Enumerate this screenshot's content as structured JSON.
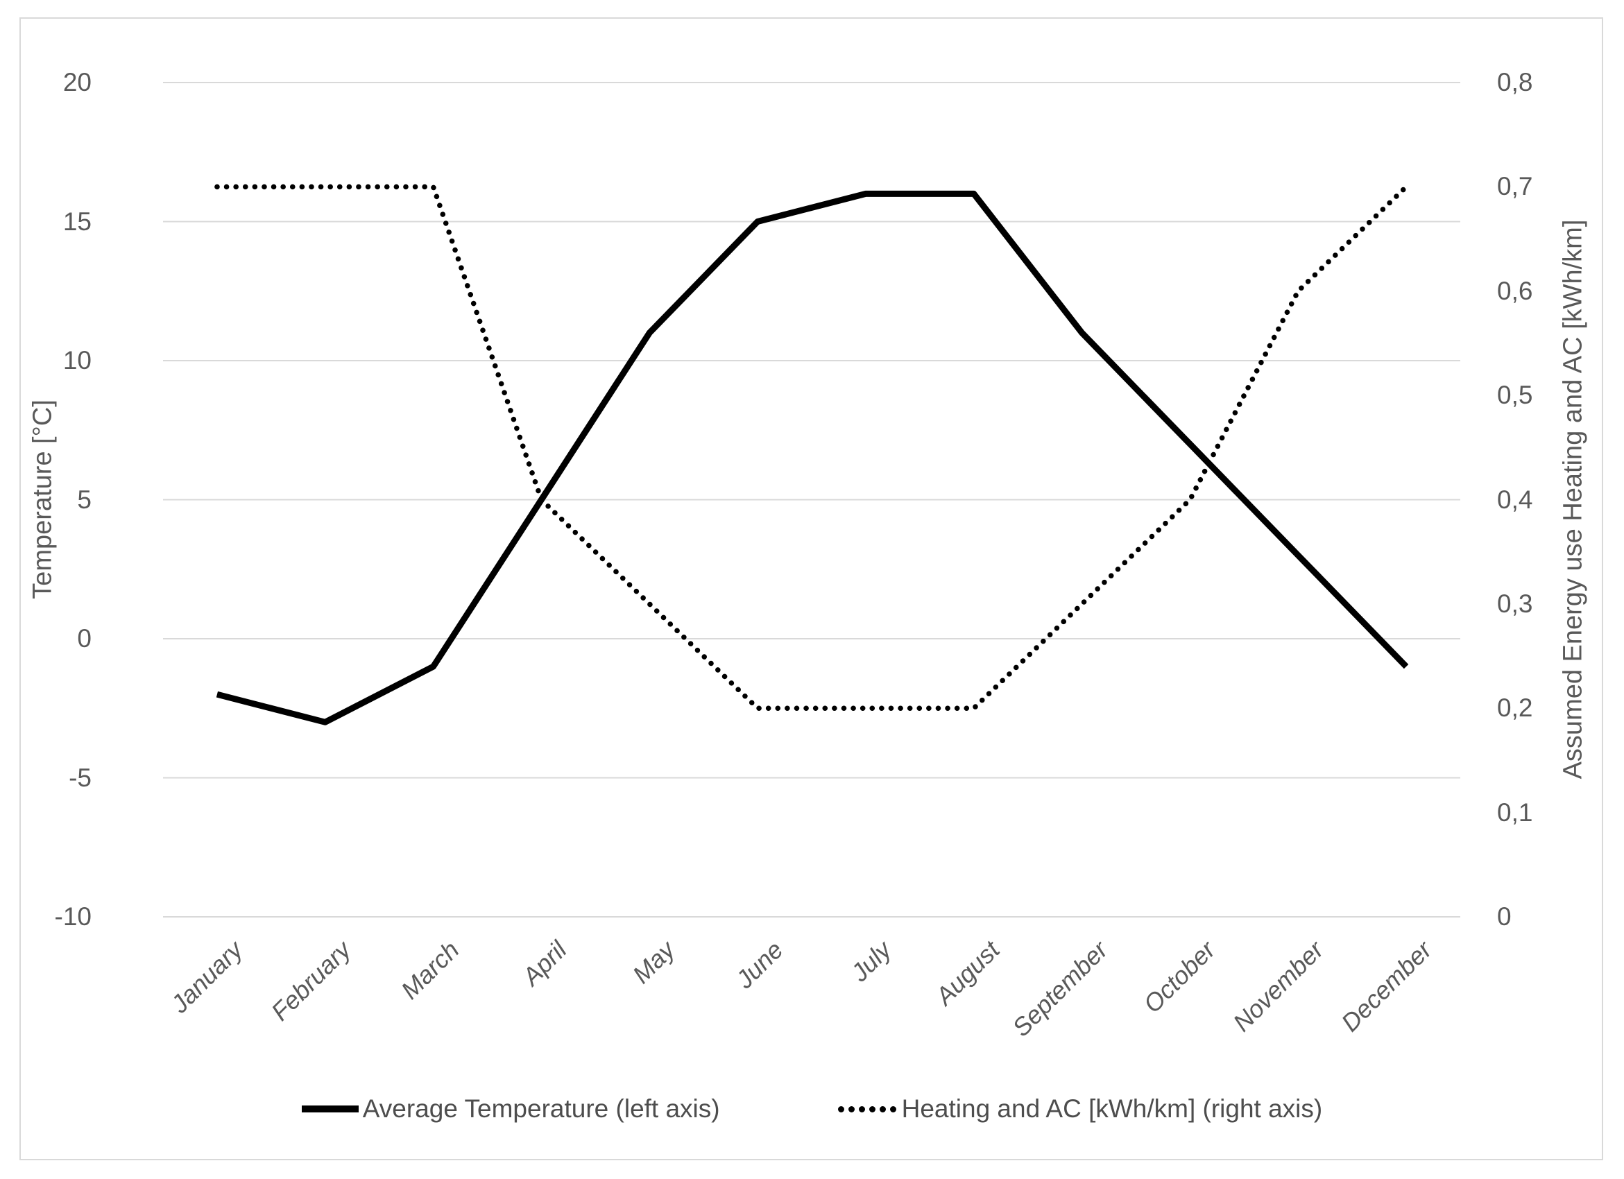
{
  "chart_data": {
    "type": "line",
    "categories": [
      "January",
      "February",
      "March",
      "April",
      "May",
      "June",
      "July",
      "August",
      "September",
      "October",
      "November",
      "December"
    ],
    "series": [
      {
        "name": "Average Temperature (left axis)",
        "axis": "left",
        "style": "solid",
        "color": "#000000",
        "values": [
          -2,
          -3,
          -1,
          5,
          11,
          15,
          16,
          16,
          11,
          7,
          3,
          -1
        ]
      },
      {
        "name": "Heating and AC [kWh/km] (right axis)",
        "axis": "right",
        "style": "dotted",
        "color": "#000000",
        "values": [
          0.7,
          0.7,
          0.7,
          0.4,
          0.3,
          0.2,
          0.2,
          0.2,
          0.3,
          0.4,
          0.6,
          0.7
        ]
      }
    ],
    "left_axis": {
      "title": "Temperature [°C]",
      "min": -10,
      "max": 20,
      "ticks": [
        {
          "label": "20",
          "value": 20
        },
        {
          "label": "15",
          "value": 15
        },
        {
          "label": "10",
          "value": 10
        },
        {
          "label": "5",
          "value": 5
        },
        {
          "label": "0",
          "value": 0
        },
        {
          "label": "-5",
          "value": -5
        },
        {
          "label": "-10",
          "value": -10
        }
      ]
    },
    "right_axis": {
      "title": "Assumed Energy use Heating and AC [kWh/km]",
      "min": 0,
      "max": 0.8,
      "ticks": [
        {
          "label": "0,8",
          "value": 0.8
        },
        {
          "label": "0,7",
          "value": 0.7
        },
        {
          "label": "0,6",
          "value": 0.6
        },
        {
          "label": "0,5",
          "value": 0.5
        },
        {
          "label": "0,4",
          "value": 0.4
        },
        {
          "label": "0,3",
          "value": 0.3
        },
        {
          "label": "0,2",
          "value": 0.2
        },
        {
          "label": "0,1",
          "value": 0.1
        },
        {
          "label": "0",
          "value": 0
        }
      ]
    },
    "grid": true,
    "legend_position": "bottom",
    "colors": {
      "text": "#595959",
      "gridline": "#d9d9d9",
      "frame_border": "#d9d9d9",
      "series": "#000000",
      "background": "#ffffff"
    }
  }
}
